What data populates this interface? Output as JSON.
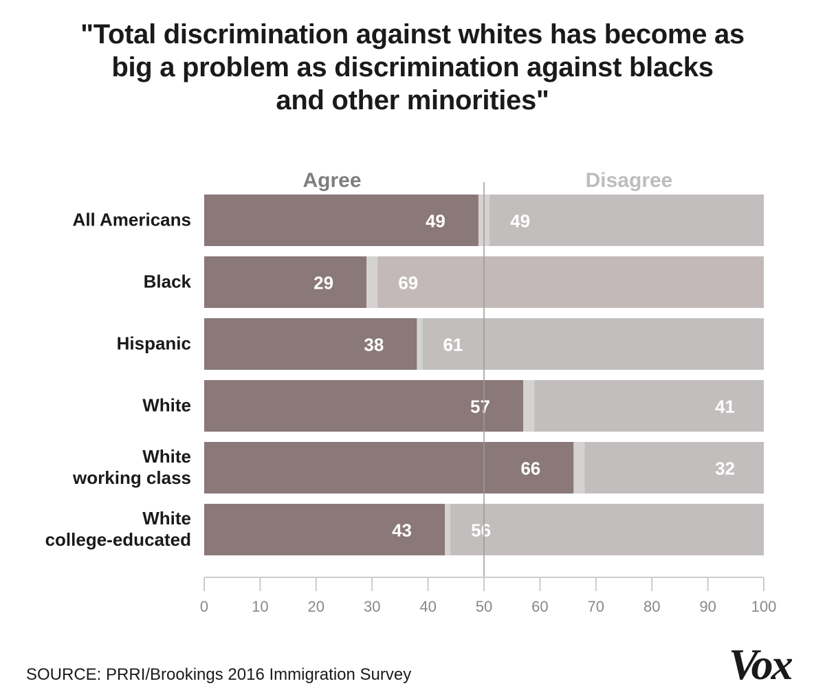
{
  "title_lines": [
    "\"Total discrimination against whites has become as",
    "big a problem as discrimination against blacks",
    "and other minorities\""
  ],
  "source": "SOURCE: PRRI/Brookings 2016 Immigration Survey",
  "logo": "Vox",
  "colors": {
    "agree": "#8b7878",
    "gap": "#d5d3d2",
    "disagree_default": "#c2bebd",
    "disagree_highlight": "#c4b9b9",
    "axis": "#cccccc",
    "tick_label": "#888888",
    "header_agree": "#7e7e7e",
    "header_disagree": "#bdbdbd",
    "midline": "#9a9a9a"
  },
  "chart_data": {
    "type": "bar",
    "orientation": "horizontal",
    "stacked": true,
    "categories": [
      [
        "All Americans"
      ],
      [
        "Black"
      ],
      [
        "Hispanic"
      ],
      [
        "White"
      ],
      [
        "White",
        "working class"
      ],
      [
        "White",
        "college-educated"
      ]
    ],
    "series": [
      {
        "name": "Agree",
        "values": [
          49,
          29,
          38,
          57,
          66,
          43
        ]
      },
      {
        "name": "Disagree",
        "values": [
          49,
          69,
          61,
          41,
          32,
          56
        ]
      }
    ],
    "highlight_disagree": [
      false,
      true,
      false,
      false,
      false,
      false
    ],
    "xlim": [
      0,
      100
    ],
    "xticks": [
      0,
      10,
      20,
      30,
      40,
      50,
      60,
      70,
      80,
      90,
      100
    ],
    "reference_line": 50,
    "grid": false
  }
}
